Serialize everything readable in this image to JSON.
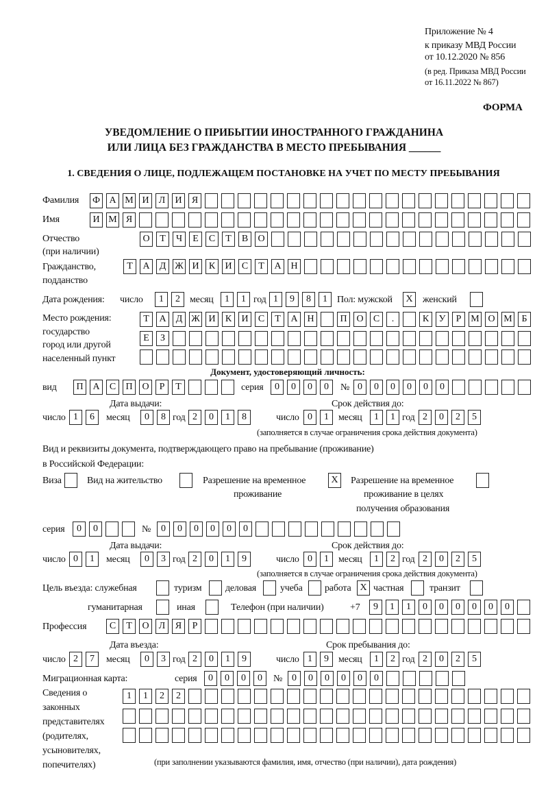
{
  "header": {
    "appendix": "Приложение № 4",
    "order": "к приказу МВД России",
    "order_date": "от 10.12.2020 № 856",
    "revision_1": "(в ред. Приказа МВД России",
    "revision_2": "от 16.11.2022 № 867)",
    "form_label": "ФОРМА",
    "title_1": "УВЕДОМЛЕНИЕ О ПРИБЫТИИ ИНОСТРАННОГО ГРАЖДАНИНА",
    "title_2": "ИЛИ ЛИЦА БЕЗ ГРАЖДАНСТВА В МЕСТО ПРЕБЫВАНИЯ ______",
    "section_1": "1. СВЕДЕНИЯ О ЛИЦЕ, ПОДЛЕЖАЩЕМ ПОСТАНОВКЕ НА УЧЕТ ПО МЕСТУ ПРЕБЫВАНИЯ"
  },
  "labels": {
    "surname": "Фамилия",
    "name": "Имя",
    "patronymic": "Отчество",
    "patronymic_note": "(при наличии)",
    "citizenship": "Гражданство,",
    "citizenship_2": "подданство",
    "birth_date": "Дата рождения:",
    "day": "число",
    "month": "месяц",
    "year": "год",
    "sex": "Пол: мужской",
    "female": "женский",
    "birthplace_1": "Место рождения:",
    "birthplace_2": "государство",
    "birthplace_3": "город или другой",
    "birthplace_4": "населенный пункт",
    "id_doc": "Документ, удостоверяющий личность:",
    "kind": "вид",
    "series": "серия",
    "number": "№",
    "issue_date": "Дата выдачи:",
    "valid_until": "Срок действия до:",
    "validity_note": "(заполняется в случае ограничения срока действия документа)",
    "stay_doc_1": "Вид и реквизиты документа, подтверждающего право на пребывание (проживание)",
    "stay_doc_2": "в Российской Федерации:",
    "visa": "Виза",
    "residence": "Вид на жительство",
    "trp_1": "Разрешение на временное",
    "trp_2": "проживание",
    "trp_edu_1": "Разрешение на временное",
    "trp_edu_2": "проживание в целях",
    "trp_edu_3": "получения образования",
    "purpose": "Цель въезда: служебная",
    "tourism": "туризм",
    "business": "деловая",
    "study": "учеба",
    "work": "работа",
    "private": "частная",
    "transit": "транзит",
    "humanitarian": "гуманитарная",
    "other": "иная",
    "phone": "Телефон (при наличии)",
    "phone_prefix": "+7",
    "profession": "Профессия",
    "entry_date": "Дата въезда:",
    "stay_until": "Срок пребывания до:",
    "migration_card": "Миграционная карта:",
    "reps_1": "Сведения о",
    "reps_2": "законных",
    "reps_3": "представителях",
    "reps_4": "(родителях,",
    "reps_5": "усыновителях,",
    "reps_6": "попечителях)",
    "reps_note": "(при заполнении указываются фамилия, имя, отчество (при наличии), дата рождения)"
  },
  "person": {
    "surname": "ФАМИЛИЯ",
    "name": "ИМЯ",
    "patronymic": "ОТЧЕСТВО",
    "citizenship": "ТАДЖИКИСТАН",
    "birth_day": "12",
    "birth_month": "11",
    "birth_year": "1981",
    "male": "X",
    "female": "",
    "birthplace_1": "ТАДЖИКИСТАН ПОС. КУРМОМБ",
    "birthplace_2": "ЕЗ",
    "birthplace_3": ""
  },
  "id_document": {
    "kind": "ПАСПОРТ",
    "series": "0000",
    "number": "000000",
    "issue_day": "16",
    "issue_month": "08",
    "issue_year": "2018",
    "valid_day": "01",
    "valid_month": "11",
    "valid_year": "2025"
  },
  "stay_document": {
    "visa": "",
    "residence": "",
    "trp": "X",
    "trp_edu": "",
    "series": "00",
    "number": "000000",
    "issue_day": "01",
    "issue_month": "03",
    "issue_year": "2019",
    "valid_day": "01",
    "valid_month": "12",
    "valid_year": "2025"
  },
  "purpose": {
    "official": "",
    "tourism": "",
    "business": "",
    "study": "",
    "work": "X",
    "private": "",
    "transit": "",
    "humanitarian": "",
    "other": ""
  },
  "phone": "911000000",
  "profession": "СТОЛЯР",
  "entry": {
    "day": "27",
    "month": "03",
    "year": "2019",
    "until_day": "19",
    "until_month": "12",
    "until_year": "2025"
  },
  "migration_card": {
    "series": "0000",
    "number": "000000"
  },
  "representatives": {
    "line_1": "1122",
    "line_2": "",
    "line_3": ""
  }
}
